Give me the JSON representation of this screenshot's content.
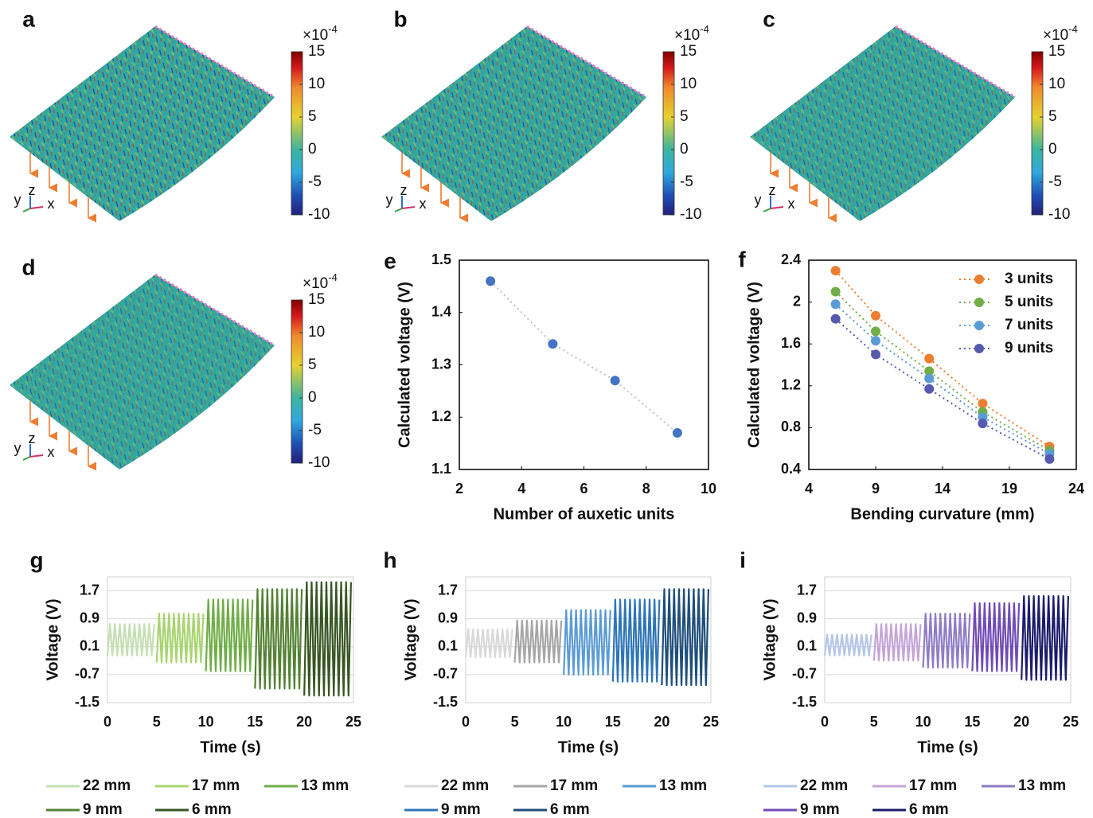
{
  "strain_maps": [
    {
      "label": "a",
      "axis_labels": [
        "y",
        "z",
        "x"
      ],
      "colorbar": {
        "multiplier": "×10",
        "exponent": "-4",
        "lim": [
          -10,
          15
        ],
        "ticks": [
          15,
          10,
          5,
          0,
          -5,
          -10
        ]
      }
    },
    {
      "label": "b",
      "axis_labels": [
        "y",
        "z",
        "x"
      ],
      "colorbar": {
        "multiplier": "×10",
        "exponent": "-4",
        "lim": [
          -10,
          15
        ],
        "ticks": [
          15,
          10,
          5,
          0,
          -5,
          -10
        ]
      }
    },
    {
      "label": "c",
      "axis_labels": [
        "y",
        "z",
        "x"
      ],
      "colorbar": {
        "multiplier": "×10",
        "exponent": "-4",
        "lim": [
          -10,
          15
        ],
        "ticks": [
          15,
          10,
          5,
          0,
          -5,
          -10
        ]
      }
    },
    {
      "label": "d",
      "axis_labels": [
        "y",
        "z",
        "x"
      ],
      "colorbar": {
        "multiplier": "×10",
        "exponent": "-4",
        "lim": [
          -10,
          15
        ],
        "ticks": [
          15,
          10,
          5,
          0,
          -5,
          -10
        ]
      }
    }
  ],
  "chart_data": [
    {
      "label": "e",
      "type": "line",
      "x_label": "Number of auxetic units",
      "y_label": "Calculated voltage (V)",
      "x": [
        3,
        5,
        7,
        9
      ],
      "values": [
        1.46,
        1.34,
        1.27,
        1.17
      ],
      "color": "#4472c4",
      "line_color": "#bfbfbf",
      "line_style": "dotted",
      "markers": true,
      "grid": false,
      "xlim": [
        2,
        10
      ],
      "xticks": [
        2,
        4,
        6,
        8,
        10
      ],
      "ylim": [
        1.1,
        1.5
      ],
      "yticks": [
        1.1,
        1.2,
        1.3,
        1.4,
        1.5
      ]
    },
    {
      "label": "f",
      "type": "line",
      "x_label": "Bending curvature (mm)",
      "y_label": "Calculated voltage (V)",
      "x": [
        6,
        9,
        13,
        17,
        22
      ],
      "line_style": "dotted",
      "markers": true,
      "grid": false,
      "legend": "upper right",
      "series": [
        {
          "name": "3 units",
          "color": "#ed7d31",
          "values": [
            2.3,
            1.87,
            1.46,
            1.03,
            0.62
          ]
        },
        {
          "name": "5 units",
          "color": "#70ad47",
          "values": [
            2.1,
            1.72,
            1.34,
            0.95,
            0.58
          ]
        },
        {
          "name": "7 units",
          "color": "#5b9bd5",
          "values": [
            1.98,
            1.63,
            1.27,
            0.9,
            0.55
          ]
        },
        {
          "name": "9 units",
          "color": "#5659b0",
          "values": [
            1.84,
            1.5,
            1.17,
            0.84,
            0.5
          ]
        }
      ],
      "xlim": [
        4,
        24
      ],
      "xticks": [
        4,
        9,
        14,
        19,
        24
      ],
      "ylim": [
        0.4,
        2.4
      ],
      "yticks": [
        0.4,
        0.8,
        1.2,
        1.6,
        2,
        2.4
      ]
    },
    {
      "label": "g",
      "type": "line",
      "x_label": "Time (s)",
      "y_label": "Voltage (V)",
      "line_style": "solid",
      "markers": false,
      "grid": true,
      "legend": "below",
      "xlim": [
        0,
        25
      ],
      "xticks": [
        0,
        5,
        10,
        15,
        20,
        25
      ],
      "ylim": [
        -1.5,
        2.1
      ],
      "yticks": [
        -1.5,
        -0.7,
        0.1,
        0.9,
        1.7
      ],
      "series": [
        {
          "name": "22 mm",
          "color": "#c5e0b4",
          "x": [
            0,
            0.25,
            0.5,
            0.75,
            1,
            1.25,
            1.5,
            1.75,
            2,
            2.25,
            2.5,
            2.75,
            3,
            3.25,
            3.5,
            3.75,
            4,
            4.25,
            4.5,
            4.75
          ],
          "values": [
            -0.15,
            0.75,
            -0.15,
            0.75,
            -0.15,
            0.75,
            -0.15,
            0.75,
            -0.15,
            0.75,
            -0.15,
            0.75,
            -0.15,
            0.75,
            -0.15,
            0.75,
            -0.15,
            0.75,
            -0.15,
            0.75
          ]
        },
        {
          "name": "17 mm",
          "color": "#a9d46f",
          "x": [
            5,
            5.25,
            5.5,
            5.75,
            6,
            6.25,
            6.5,
            6.75,
            7,
            7.25,
            7.5,
            7.75,
            8,
            8.25,
            8.5,
            8.75,
            9,
            9.25,
            9.5,
            9.75
          ],
          "values": [
            -0.35,
            1.05,
            -0.35,
            1.05,
            -0.35,
            1.05,
            -0.35,
            1.05,
            -0.35,
            1.05,
            -0.35,
            1.05,
            -0.35,
            1.05,
            -0.35,
            1.05,
            -0.35,
            1.05,
            -0.35,
            1.05
          ]
        },
        {
          "name": "13 mm",
          "color": "#70ad47",
          "x": [
            10,
            10.25,
            10.5,
            10.75,
            11,
            11.25,
            11.5,
            11.75,
            12,
            12.25,
            12.5,
            12.75,
            13,
            13.25,
            13.5,
            13.75,
            14,
            14.25,
            14.5,
            14.75
          ],
          "values": [
            -0.6,
            1.45,
            -0.6,
            1.45,
            -0.6,
            1.45,
            -0.6,
            1.45,
            -0.6,
            1.45,
            -0.6,
            1.45,
            -0.6,
            1.45,
            -0.6,
            1.45,
            -0.6,
            1.45,
            -0.6,
            1.45
          ]
        },
        {
          "name": "9 mm",
          "color": "#548235",
          "x": [
            15,
            15.25,
            15.5,
            15.75,
            16,
            16.25,
            16.5,
            16.75,
            17,
            17.25,
            17.5,
            17.75,
            18,
            18.25,
            18.5,
            18.75,
            19,
            19.25,
            19.5,
            19.75
          ],
          "values": [
            -1.1,
            1.75,
            -1.1,
            1.75,
            -1.1,
            1.75,
            -1.1,
            1.75,
            -1.1,
            1.75,
            -1.1,
            1.75,
            -1.1,
            1.75,
            -1.1,
            1.75,
            -1.1,
            1.75,
            -1.1,
            1.75
          ]
        },
        {
          "name": "6 mm",
          "color": "#375623",
          "x": [
            20,
            20.25,
            20.5,
            20.75,
            21,
            21.25,
            21.5,
            21.75,
            22,
            22.25,
            22.5,
            22.75,
            23,
            23.25,
            23.5,
            23.75,
            24,
            24.25,
            24.5,
            24.75
          ],
          "values": [
            -1.3,
            1.95,
            -1.3,
            1.95,
            -1.3,
            1.95,
            -1.3,
            1.95,
            -1.3,
            1.95,
            -1.3,
            1.95,
            -1.3,
            1.95,
            -1.3,
            1.95,
            -1.3,
            1.95,
            -1.3,
            1.95
          ]
        }
      ]
    },
    {
      "label": "h",
      "type": "line",
      "x_label": "Time (s)",
      "y_label": "Voltage (V)",
      "line_style": "solid",
      "markers": false,
      "grid": true,
      "legend": "below",
      "xlim": [
        0,
        25
      ],
      "xticks": [
        0,
        5,
        10,
        15,
        20,
        25
      ],
      "ylim": [
        -1.5,
        2.1
      ],
      "yticks": [
        -1.5,
        -0.7,
        0.1,
        0.9,
        1.7
      ],
      "series": [
        {
          "name": "22 mm",
          "color": "#d9d9d9",
          "x": [
            0,
            0.25,
            0.5,
            0.75,
            1,
            1.25,
            1.5,
            1.75,
            2,
            2.25,
            2.5,
            2.75,
            3,
            3.25,
            3.5,
            3.75,
            4,
            4.25,
            4.5,
            4.75
          ],
          "values": [
            -0.2,
            0.6,
            -0.2,
            0.6,
            -0.2,
            0.6,
            -0.2,
            0.6,
            -0.2,
            0.6,
            -0.2,
            0.6,
            -0.2,
            0.6,
            -0.2,
            0.6,
            -0.2,
            0.6,
            -0.2,
            0.6
          ]
        },
        {
          "name": "17 mm",
          "color": "#a6a6a6",
          "x": [
            5,
            5.25,
            5.5,
            5.75,
            6,
            6.25,
            6.5,
            6.75,
            7,
            7.25,
            7.5,
            7.75,
            8,
            8.25,
            8.5,
            8.75,
            9,
            9.25,
            9.5,
            9.75
          ],
          "values": [
            -0.35,
            0.85,
            -0.35,
            0.85,
            -0.35,
            0.85,
            -0.35,
            0.85,
            -0.35,
            0.85,
            -0.35,
            0.85,
            -0.35,
            0.85,
            -0.35,
            0.85,
            -0.35,
            0.85,
            -0.35,
            0.85
          ]
        },
        {
          "name": "13 mm",
          "color": "#5b9bd5",
          "x": [
            10,
            10.25,
            10.5,
            10.75,
            11,
            11.25,
            11.5,
            11.75,
            12,
            12.25,
            12.5,
            12.75,
            13,
            13.25,
            13.5,
            13.75,
            14,
            14.25,
            14.5,
            14.75
          ],
          "values": [
            -0.7,
            1.15,
            -0.7,
            1.15,
            -0.7,
            1.15,
            -0.7,
            1.15,
            -0.7,
            1.15,
            -0.7,
            1.15,
            -0.7,
            1.15,
            -0.7,
            1.15,
            -0.7,
            1.15,
            -0.7,
            1.15
          ]
        },
        {
          "name": "9 mm",
          "color": "#2e75b6",
          "x": [
            15,
            15.25,
            15.5,
            15.75,
            16,
            16.25,
            16.5,
            16.75,
            17,
            17.25,
            17.5,
            17.75,
            18,
            18.25,
            18.5,
            18.75,
            19,
            19.25,
            19.5,
            19.75
          ],
          "values": [
            -0.9,
            1.45,
            -0.9,
            1.45,
            -0.9,
            1.45,
            -0.9,
            1.45,
            -0.9,
            1.45,
            -0.9,
            1.45,
            -0.9,
            1.45,
            -0.9,
            1.45,
            -0.9,
            1.45,
            -0.9,
            1.45
          ]
        },
        {
          "name": "6 mm",
          "color": "#1f4e79",
          "x": [
            20,
            20.25,
            20.5,
            20.75,
            21,
            21.25,
            21.5,
            21.75,
            22,
            22.25,
            22.5,
            22.75,
            23,
            23.25,
            23.5,
            23.75,
            24,
            24.25,
            24.5,
            24.75
          ],
          "values": [
            -1,
            1.75,
            -1,
            1.75,
            -1,
            1.75,
            -1,
            1.75,
            -1,
            1.75,
            -1,
            1.75,
            -1,
            1.75,
            -1,
            1.75,
            -1,
            1.75,
            -1,
            1.75
          ]
        }
      ]
    },
    {
      "label": "i",
      "type": "line",
      "x_label": "Time (s)",
      "y_label": "Voltage (V)",
      "line_style": "solid",
      "markers": false,
      "grid": true,
      "legend": "below",
      "xlim": [
        0,
        25
      ],
      "xticks": [
        0,
        5,
        10,
        15,
        20,
        25
      ],
      "ylim": [
        -1.5,
        2.1
      ],
      "yticks": [
        -1.5,
        -0.7,
        0.1,
        0.9,
        1.7
      ],
      "series": [
        {
          "name": "22 mm",
          "color": "#b4c7e7",
          "x": [
            0,
            0.25,
            0.5,
            0.75,
            1,
            1.25,
            1.5,
            1.75,
            2,
            2.25,
            2.5,
            2.75,
            3,
            3.25,
            3.5,
            3.75,
            4,
            4.25,
            4.5,
            4.75
          ],
          "values": [
            -0.15,
            0.45,
            -0.15,
            0.45,
            -0.15,
            0.45,
            -0.15,
            0.45,
            -0.15,
            0.45,
            -0.15,
            0.45,
            -0.15,
            0.45,
            -0.15,
            0.45,
            -0.15,
            0.45,
            -0.15,
            0.45
          ]
        },
        {
          "name": "17 mm",
          "color": "#c5a5d8",
          "x": [
            5,
            5.25,
            5.5,
            5.75,
            6,
            6.25,
            6.5,
            6.75,
            7,
            7.25,
            7.5,
            7.75,
            8,
            8.25,
            8.5,
            8.75,
            9,
            9.25,
            9.5,
            9.75
          ],
          "values": [
            -0.3,
            0.75,
            -0.3,
            0.75,
            -0.3,
            0.75,
            -0.3,
            0.75,
            -0.3,
            0.75,
            -0.3,
            0.75,
            -0.3,
            0.75,
            -0.3,
            0.75,
            -0.3,
            0.75,
            -0.3,
            0.75
          ]
        },
        {
          "name": "13 mm",
          "color": "#8f7cc6",
          "x": [
            10,
            10.25,
            10.5,
            10.75,
            11,
            11.25,
            11.5,
            11.75,
            12,
            12.25,
            12.5,
            12.75,
            13,
            13.25,
            13.5,
            13.75,
            14,
            14.25,
            14.5,
            14.75
          ],
          "values": [
            -0.5,
            1.05,
            -0.5,
            1.05,
            -0.5,
            1.05,
            -0.5,
            1.05,
            -0.5,
            1.05,
            -0.5,
            1.05,
            -0.5,
            1.05,
            -0.5,
            1.05,
            -0.5,
            1.05,
            -0.5,
            1.05
          ]
        },
        {
          "name": "9 mm",
          "color": "#6f4cb5",
          "x": [
            15,
            15.25,
            15.5,
            15.75,
            16,
            16.25,
            16.5,
            16.75,
            17,
            17.25,
            17.5,
            17.75,
            18,
            18.25,
            18.5,
            18.75,
            19,
            19.25,
            19.5,
            19.75
          ],
          "values": [
            -0.6,
            1.35,
            -0.6,
            1.35,
            -0.6,
            1.35,
            -0.6,
            1.35,
            -0.6,
            1.35,
            -0.6,
            1.35,
            -0.6,
            1.35,
            -0.6,
            1.35,
            -0.6,
            1.35,
            -0.6,
            1.35
          ]
        },
        {
          "name": "6 mm",
          "color": "#1c1c6b",
          "x": [
            20,
            20.25,
            20.5,
            20.75,
            21,
            21.25,
            21.5,
            21.75,
            22,
            22.25,
            22.5,
            22.75,
            23,
            23.25,
            23.5,
            23.75,
            24,
            24.25,
            24.5,
            24.75
          ],
          "values": [
            -0.85,
            1.55,
            -0.85,
            1.55,
            -0.85,
            1.55,
            -0.85,
            1.55,
            -0.85,
            1.55,
            -0.85,
            1.55,
            -0.85,
            1.55,
            -0.85,
            1.55,
            -0.85,
            1.55,
            -0.85,
            1.55
          ]
        }
      ]
    }
  ]
}
